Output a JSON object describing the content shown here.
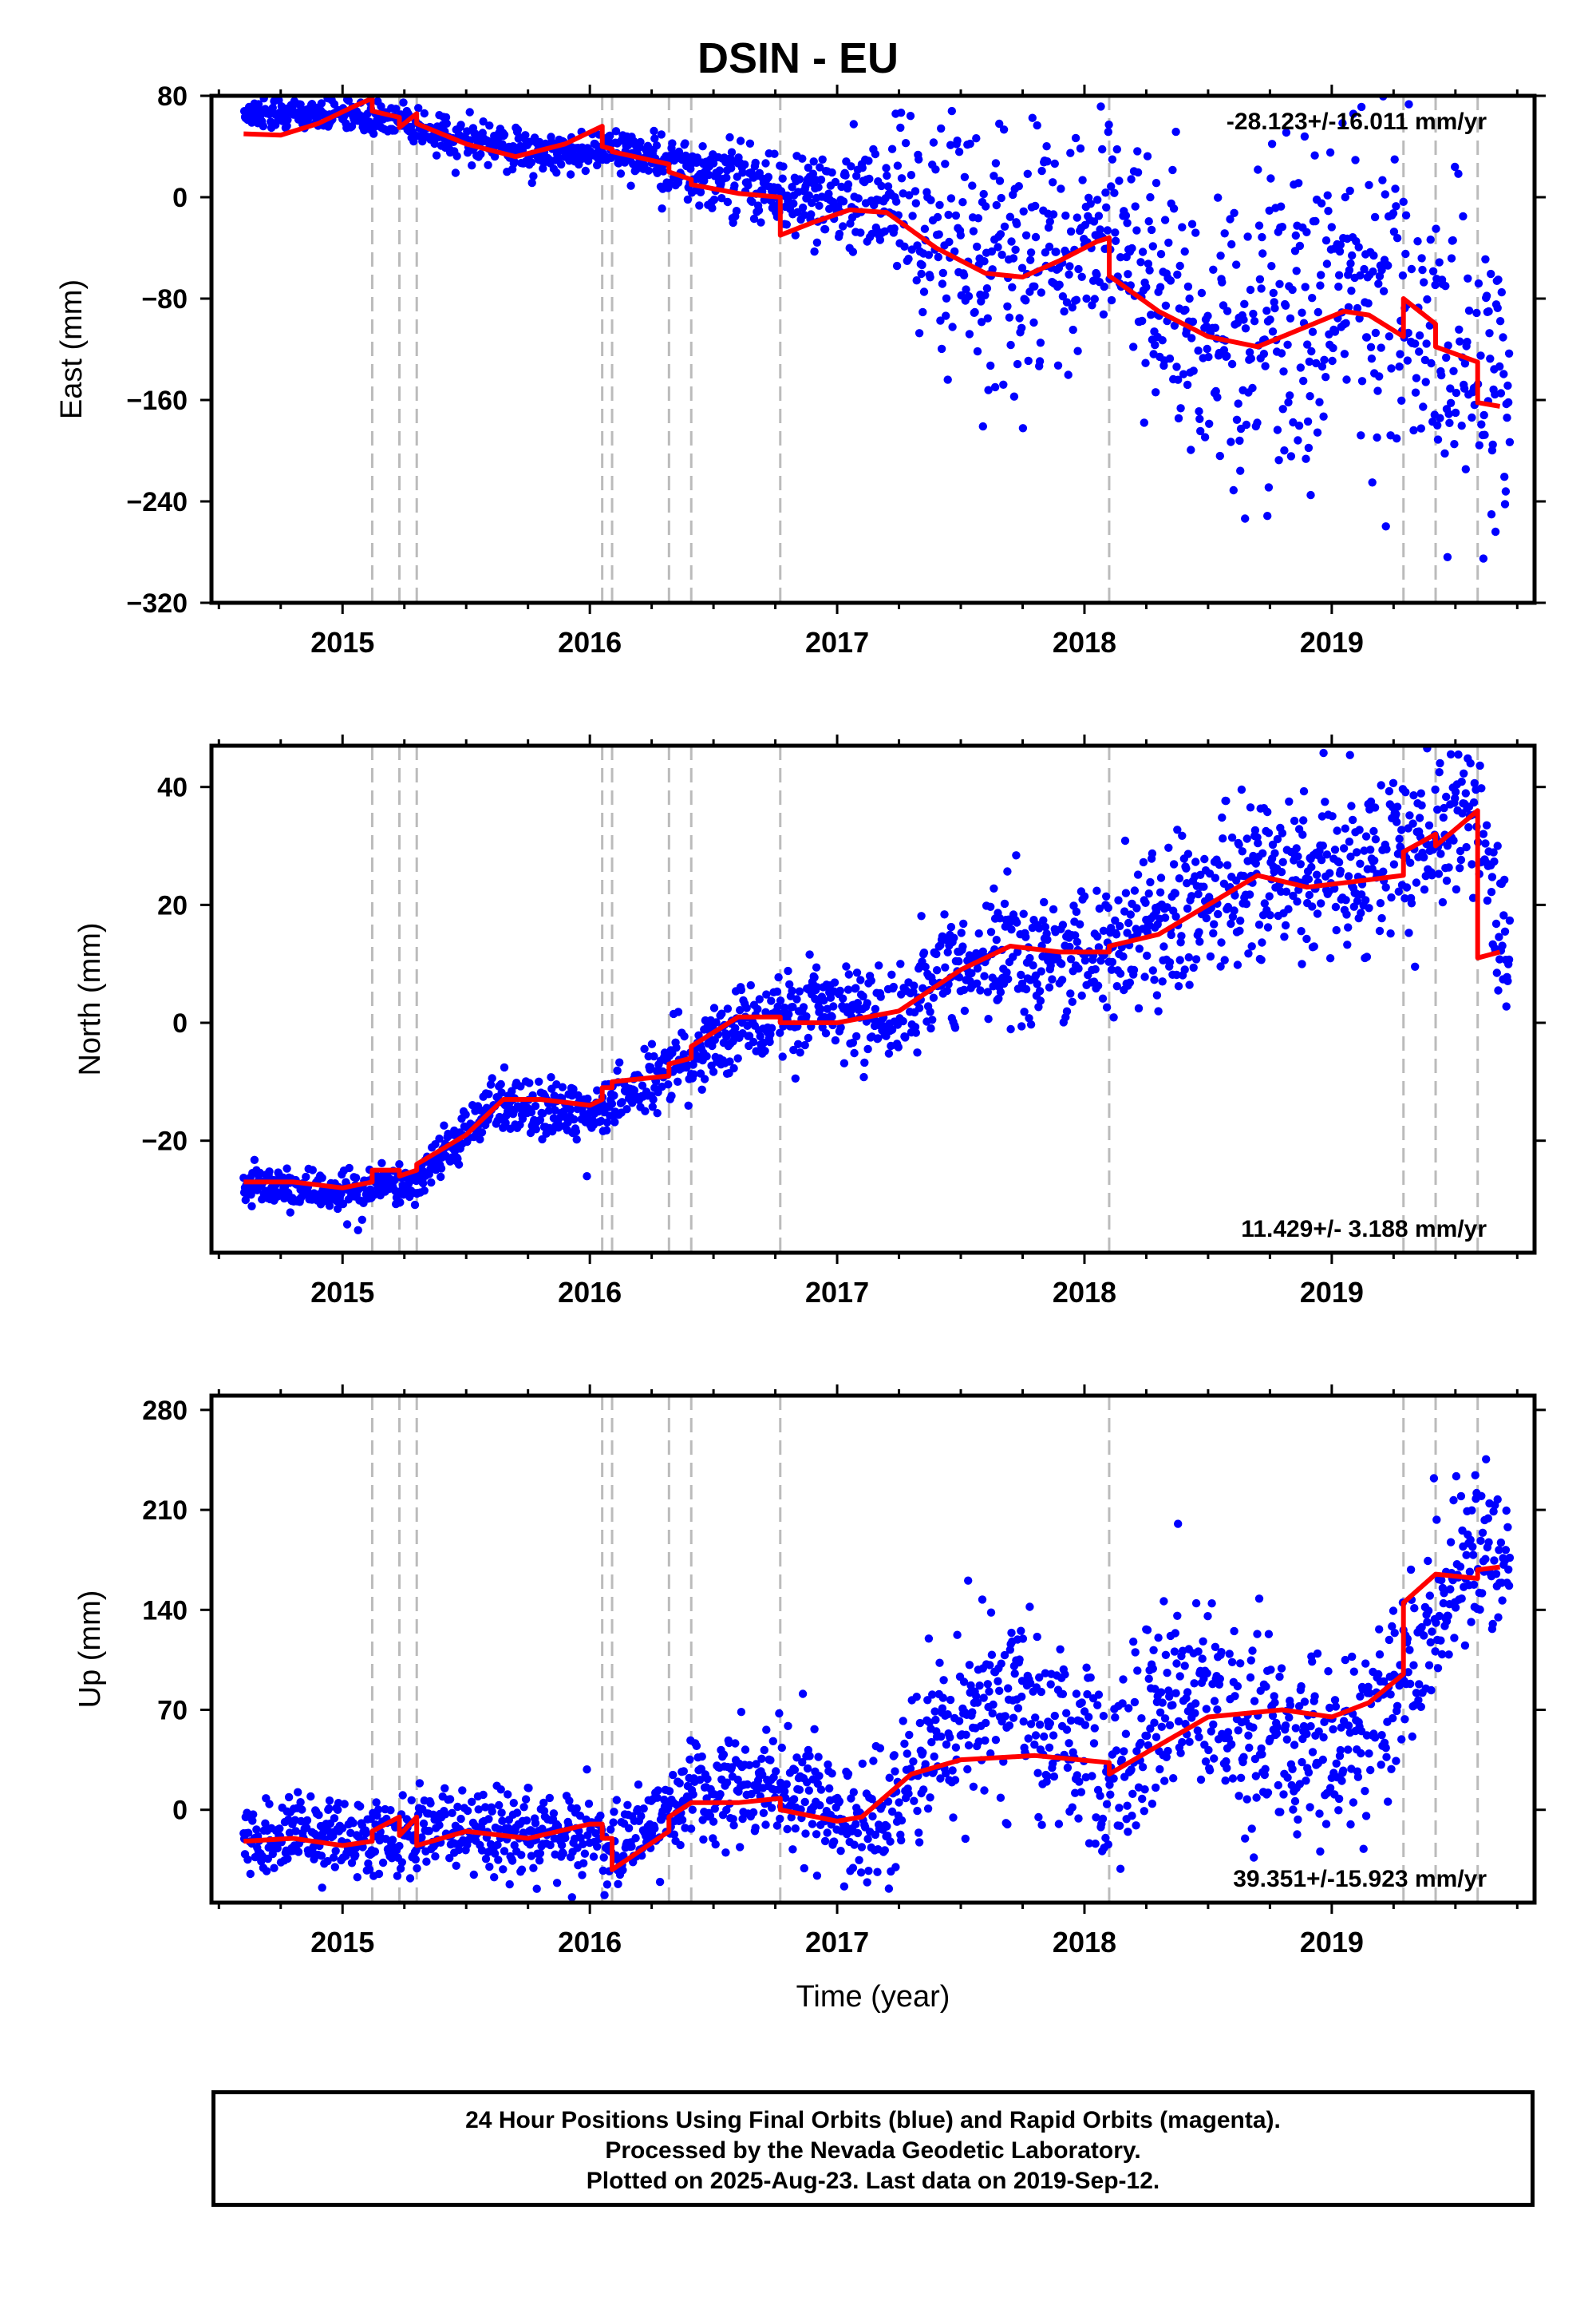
{
  "title": "DSIN - EU",
  "xlabel": "Time (year)",
  "footer": {
    "line1": "24 Hour Positions Using Final Orbits (blue) and Rapid Orbits (magenta).",
    "line2": "Processed by the Nevada Geodetic Laboratory.",
    "line3": "Plotted on 2025-Aug-23. Last data on 2019-Sep-12."
  },
  "colors": {
    "points": "#0000ff",
    "model": "#ff0000",
    "steps": "#bbbbbb",
    "frame": "#000000"
  },
  "chart_data": [
    {
      "type": "scatter",
      "ylabel": "East (mm)",
      "rate_text": "-28.123+/-16.011 mm/yr",
      "rate_position": "top-right",
      "xlim": [
        2014.47,
        2019.82
      ],
      "ylim": [
        -320,
        80
      ],
      "xticks": [
        2015,
        2016,
        2017,
        2018,
        2019
      ],
      "yticks": [
        80,
        0,
        -80,
        -160,
        -240,
        -320
      ],
      "step_epochs": [
        2015.12,
        2015.23,
        2015.3,
        2016.05,
        2016.09,
        2016.32,
        2016.41,
        2016.77,
        2018.1,
        2019.29,
        2019.42,
        2019.59
      ],
      "model": [
        [
          2014.6,
          50
        ],
        [
          2014.75,
          49
        ],
        [
          2014.9,
          58
        ],
        [
          2015.05,
          72
        ],
        [
          2015.12,
          78
        ],
        [
          2015.12,
          68
        ],
        [
          2015.23,
          63
        ],
        [
          2015.23,
          55
        ],
        [
          2015.3,
          66
        ],
        [
          2015.3,
          58
        ],
        [
          2015.5,
          42
        ],
        [
          2015.7,
          32
        ],
        [
          2015.9,
          42
        ],
        [
          2016.05,
          56
        ],
        [
          2016.05,
          40
        ],
        [
          2016.09,
          38
        ],
        [
          2016.09,
          36
        ],
        [
          2016.32,
          26
        ],
        [
          2016.32,
          20
        ],
        [
          2016.41,
          14
        ],
        [
          2016.41,
          10
        ],
        [
          2016.6,
          3
        ],
        [
          2016.77,
          0
        ],
        [
          2016.77,
          -30
        ],
        [
          2016.9,
          -20
        ],
        [
          2017.05,
          -10
        ],
        [
          2017.2,
          -12
        ],
        [
          2017.4,
          -40
        ],
        [
          2017.6,
          -60
        ],
        [
          2017.75,
          -63
        ],
        [
          2017.9,
          -50
        ],
        [
          2018.05,
          -35
        ],
        [
          2018.1,
          -32
        ],
        [
          2018.1,
          -62
        ],
        [
          2018.3,
          -90
        ],
        [
          2018.5,
          -110
        ],
        [
          2018.7,
          -118
        ],
        [
          2018.9,
          -102
        ],
        [
          2019.05,
          -90
        ],
        [
          2019.15,
          -93
        ],
        [
          2019.29,
          -110
        ],
        [
          2019.29,
          -80
        ],
        [
          2019.42,
          -100
        ],
        [
          2019.42,
          -118
        ],
        [
          2019.59,
          -130
        ],
        [
          2019.59,
          -162
        ],
        [
          2019.68,
          -165
        ]
      ],
      "data_trend": [
        [
          2014.6,
          66
        ],
        [
          2014.9,
          66
        ],
        [
          2015.2,
          60
        ],
        [
          2015.5,
          45
        ],
        [
          2015.8,
          35
        ],
        [
          2016.1,
          36
        ],
        [
          2016.4,
          22
        ],
        [
          2016.7,
          8
        ],
        [
          2016.9,
          2
        ],
        [
          2017.1,
          0
        ],
        [
          2017.3,
          -12
        ],
        [
          2017.6,
          -60
        ],
        [
          2017.9,
          -40
        ],
        [
          2018.1,
          -20
        ],
        [
          2018.3,
          -80
        ],
        [
          2018.6,
          -120
        ],
        [
          2018.9,
          -80
        ],
        [
          2019.1,
          -60
        ],
        [
          2019.29,
          -75
        ],
        [
          2019.5,
          -110
        ],
        [
          2019.72,
          -176
        ]
      ],
      "data_spread": [
        [
          2014.6,
          5
        ],
        [
          2015.4,
          8
        ],
        [
          2016.0,
          8
        ],
        [
          2016.6,
          14
        ],
        [
          2017.2,
          22
        ],
        [
          2017.4,
          55
        ],
        [
          2018.0,
          45
        ],
        [
          2018.2,
          55
        ],
        [
          2018.8,
          65
        ],
        [
          2019.7,
          65
        ]
      ]
    },
    {
      "type": "scatter",
      "ylabel": "North (mm)",
      "rate_text": "11.429+/- 3.188 mm/yr",
      "rate_position": "bottom-right",
      "xlim": [
        2014.47,
        2019.82
      ],
      "ylim": [
        -39,
        47
      ],
      "xticks": [
        2015,
        2016,
        2017,
        2018,
        2019
      ],
      "yticks": [
        40,
        20,
        0,
        -20
      ],
      "step_epochs": [
        2015.12,
        2015.23,
        2015.3,
        2016.05,
        2016.09,
        2016.32,
        2016.41,
        2016.77,
        2018.1,
        2019.29,
        2019.42,
        2019.59
      ],
      "model": [
        [
          2014.6,
          -27
        ],
        [
          2014.8,
          -27
        ],
        [
          2015.0,
          -28
        ],
        [
          2015.12,
          -27
        ],
        [
          2015.12,
          -25
        ],
        [
          2015.23,
          -25
        ],
        [
          2015.23,
          -26
        ],
        [
          2015.3,
          -25
        ],
        [
          2015.3,
          -24
        ],
        [
          2015.5,
          -19
        ],
        [
          2015.65,
          -13
        ],
        [
          2015.8,
          -13
        ],
        [
          2016.0,
          -14
        ],
        [
          2016.05,
          -13
        ],
        [
          2016.05,
          -11
        ],
        [
          2016.09,
          -11
        ],
        [
          2016.09,
          -10
        ],
        [
          2016.32,
          -9
        ],
        [
          2016.32,
          -7
        ],
        [
          2016.41,
          -6
        ],
        [
          2016.41,
          -4
        ],
        [
          2016.6,
          1
        ],
        [
          2016.77,
          1
        ],
        [
          2016.77,
          0
        ],
        [
          2017.0,
          0
        ],
        [
          2017.25,
          2
        ],
        [
          2017.5,
          9
        ],
        [
          2017.7,
          13
        ],
        [
          2017.9,
          12
        ],
        [
          2018.1,
          12
        ],
        [
          2018.1,
          13
        ],
        [
          2018.3,
          15
        ],
        [
          2018.5,
          20
        ],
        [
          2018.7,
          25
        ],
        [
          2018.9,
          23
        ],
        [
          2019.1,
          24
        ],
        [
          2019.29,
          25
        ],
        [
          2019.29,
          29
        ],
        [
          2019.42,
          32
        ],
        [
          2019.42,
          30
        ],
        [
          2019.59,
          36
        ],
        [
          2019.59,
          11
        ],
        [
          2019.68,
          12
        ]
      ],
      "data_trend": [
        [
          2014.6,
          -28
        ],
        [
          2015.1,
          -29
        ],
        [
          2015.3,
          -27
        ],
        [
          2015.6,
          -14
        ],
        [
          2016.0,
          -15
        ],
        [
          2016.3,
          -9
        ],
        [
          2016.6,
          -1
        ],
        [
          2016.9,
          3
        ],
        [
          2017.2,
          1
        ],
        [
          2017.5,
          10
        ],
        [
          2017.8,
          11
        ],
        [
          2018.1,
          12
        ],
        [
          2018.5,
          20
        ],
        [
          2018.8,
          27
        ],
        [
          2019.1,
          24
        ],
        [
          2019.4,
          32
        ],
        [
          2019.6,
          34
        ],
        [
          2019.72,
          9
        ]
      ],
      "data_spread": [
        [
          2014.6,
          1.8
        ],
        [
          2016.0,
          2.5
        ],
        [
          2016.6,
          3
        ],
        [
          2017.2,
          4
        ],
        [
          2017.6,
          5
        ],
        [
          2018.4,
          7
        ],
        [
          2019.7,
          7
        ]
      ]
    },
    {
      "type": "scatter",
      "ylabel": "Up (mm)",
      "rate_text": "39.351+/-15.923 mm/yr",
      "rate_position": "bottom-right",
      "xlim": [
        2014.47,
        2019.82
      ],
      "ylim": [
        -65,
        290
      ],
      "xticks": [
        2015,
        2016,
        2017,
        2018,
        2019
      ],
      "yticks": [
        280,
        210,
        140,
        70,
        0
      ],
      "step_epochs": [
        2015.12,
        2015.23,
        2015.3,
        2016.05,
        2016.09,
        2016.32,
        2016.41,
        2016.77,
        2018.1,
        2019.29,
        2019.42,
        2019.59
      ],
      "model": [
        [
          2014.6,
          -22
        ],
        [
          2014.8,
          -20
        ],
        [
          2015.0,
          -25
        ],
        [
          2015.12,
          -22
        ],
        [
          2015.12,
          -15
        ],
        [
          2015.23,
          -5
        ],
        [
          2015.23,
          -18
        ],
        [
          2015.3,
          -5
        ],
        [
          2015.3,
          -25
        ],
        [
          2015.5,
          -15
        ],
        [
          2015.75,
          -20
        ],
        [
          2016.0,
          -10
        ],
        [
          2016.05,
          -10
        ],
        [
          2016.05,
          -20
        ],
        [
          2016.09,
          -20
        ],
        [
          2016.09,
          -42
        ],
        [
          2016.32,
          -15
        ],
        [
          2016.32,
          -5
        ],
        [
          2016.41,
          5
        ],
        [
          2016.6,
          5
        ],
        [
          2016.77,
          8
        ],
        [
          2016.77,
          0
        ],
        [
          2017.0,
          -8
        ],
        [
          2017.1,
          -5
        ],
        [
          2017.3,
          25
        ],
        [
          2017.5,
          35
        ],
        [
          2017.8,
          38
        ],
        [
          2018.1,
          33
        ],
        [
          2018.1,
          25
        ],
        [
          2018.3,
          45
        ],
        [
          2018.5,
          65
        ],
        [
          2018.8,
          70
        ],
        [
          2019.0,
          65
        ],
        [
          2019.15,
          75
        ],
        [
          2019.29,
          95
        ],
        [
          2019.29,
          145
        ],
        [
          2019.42,
          165
        ],
        [
          2019.59,
          162
        ],
        [
          2019.59,
          168
        ],
        [
          2019.68,
          170
        ]
      ],
      "data_trend": [
        [
          2014.6,
          -18
        ],
        [
          2015.5,
          -18
        ],
        [
          2016.0,
          -15
        ],
        [
          2016.1,
          -30
        ],
        [
          2016.4,
          10
        ],
        [
          2016.8,
          20
        ],
        [
          2017.0,
          -10
        ],
        [
          2017.2,
          -10
        ],
        [
          2017.4,
          60
        ],
        [
          2017.7,
          80
        ],
        [
          2017.9,
          55
        ],
        [
          2018.1,
          20
        ],
        [
          2018.4,
          90
        ],
        [
          2018.7,
          55
        ],
        [
          2018.9,
          45
        ],
        [
          2019.1,
          40
        ],
        [
          2019.29,
          100
        ],
        [
          2019.5,
          160
        ],
        [
          2019.72,
          185
        ]
      ],
      "data_spread": [
        [
          2014.6,
          13
        ],
        [
          2016.3,
          15
        ],
        [
          2017.2,
          25
        ],
        [
          2017.5,
          32
        ],
        [
          2018.5,
          35
        ],
        [
          2019.7,
          30
        ]
      ]
    }
  ]
}
